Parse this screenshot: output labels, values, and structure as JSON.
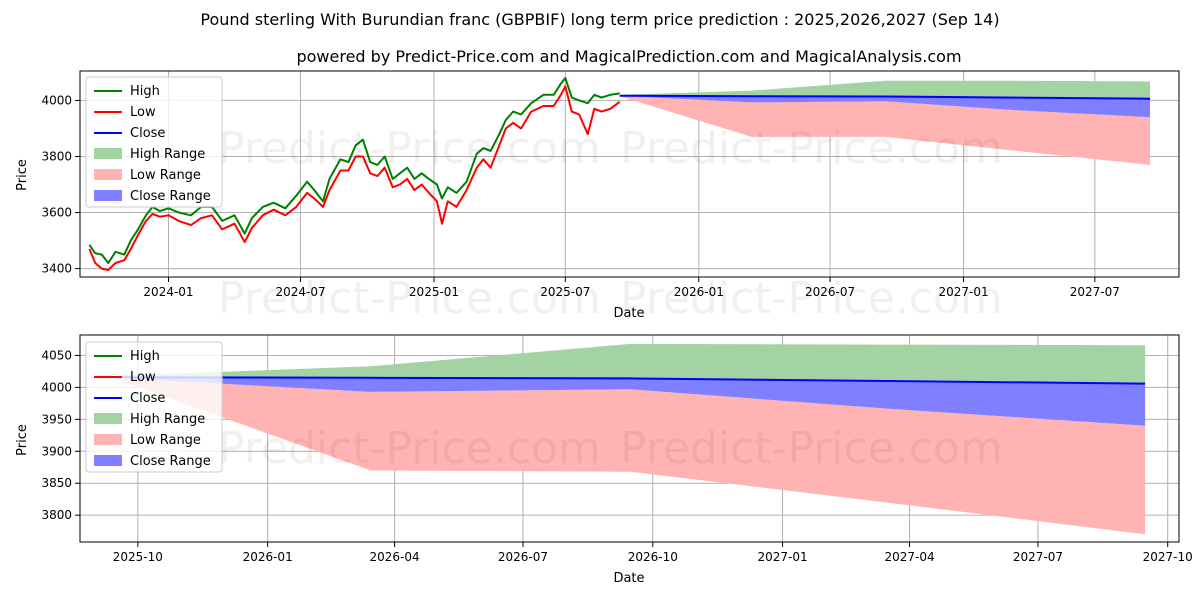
{
  "figure": {
    "title": "Pound sterling With Burundian franc (GBPBIF) long term price prediction : 2025,2026,2027 (Sep 14)",
    "subtitle": "powered by Predict-Price.com and MagicalPrediction.com and MagicalAnalysis.com",
    "watermark": "Predict-Price.com"
  },
  "colors": {
    "high": "#008000",
    "low": "#ff0000",
    "close": "#0000ff",
    "high_range": "#a3d3a3",
    "low_range": "#ffb3b3",
    "close_range": "#7f7fff",
    "grid": "#b0b0b0"
  },
  "legend": {
    "items": [
      {
        "label": "High",
        "kind": "line",
        "color": "#008000"
      },
      {
        "label": "Low",
        "kind": "line",
        "color": "#ff0000"
      },
      {
        "label": "Close",
        "kind": "line",
        "color": "#0000ff"
      },
      {
        "label": "High Range",
        "kind": "patch",
        "color": "#a3d3a3"
      },
      {
        "label": "Low Range",
        "kind": "patch",
        "color": "#ffb3b3"
      },
      {
        "label": "Close Range",
        "kind": "patch",
        "color": "#7f7fff"
      }
    ]
  },
  "chart_data": [
    {
      "type": "line",
      "name": "long-term-chart",
      "xlabel": "Date",
      "ylabel": "Price",
      "xlim": [
        "2023-09-01",
        "2027-10-25"
      ],
      "ylim": [
        3370,
        4105
      ],
      "x_ticks": [
        "2024-01",
        "2024-07",
        "2025-01",
        "2025-07",
        "2026-01",
        "2026-07",
        "2027-01",
        "2027-07"
      ],
      "y_ticks": [
        3400,
        3600,
        3800,
        4000
      ],
      "legend_position": "upper-left",
      "grid": true,
      "history": {
        "dates": [
          "2023-09-14",
          "2023-09-22",
          "2023-10-01",
          "2023-10-10",
          "2023-10-20",
          "2023-11-01",
          "2023-11-10",
          "2023-11-20",
          "2023-12-01",
          "2023-12-10",
          "2023-12-20",
          "2024-01-01",
          "2024-01-15",
          "2024-02-01",
          "2024-02-15",
          "2024-03-01",
          "2024-03-15",
          "2024-04-01",
          "2024-04-15",
          "2024-04-25",
          "2024-05-10",
          "2024-05-25",
          "2024-06-10",
          "2024-06-25",
          "2024-07-10",
          "2024-07-20",
          "2024-08-01",
          "2024-08-10",
          "2024-08-25",
          "2024-09-05",
          "2024-09-15",
          "2024-09-25",
          "2024-10-05",
          "2024-10-15",
          "2024-10-25",
          "2024-11-05",
          "2024-11-15",
          "2024-11-25",
          "2024-12-05",
          "2024-12-15",
          "2024-12-25",
          "2025-01-05",
          "2025-01-12",
          "2025-01-20",
          "2025-02-01",
          "2025-02-15",
          "2025-03-01",
          "2025-03-10",
          "2025-03-20",
          "2025-04-01",
          "2025-04-10",
          "2025-04-20",
          "2025-05-01",
          "2025-05-15",
          "2025-06-01",
          "2025-06-15",
          "2025-06-25",
          "2025-07-01",
          "2025-07-10",
          "2025-07-20",
          "2025-08-01",
          "2025-08-10",
          "2025-08-20",
          "2025-09-01",
          "2025-09-14"
        ],
        "high": [
          3485,
          3455,
          3450,
          3420,
          3460,
          3450,
          3500,
          3540,
          3590,
          3620,
          3605,
          3615,
          3600,
          3590,
          3620,
          3620,
          3570,
          3590,
          3525,
          3580,
          3620,
          3635,
          3615,
          3660,
          3710,
          3680,
          3640,
          3720,
          3790,
          3780,
          3840,
          3860,
          3780,
          3770,
          3800,
          3720,
          3740,
          3760,
          3720,
          3740,
          3720,
          3700,
          3650,
          3690,
          3670,
          3710,
          3810,
          3830,
          3820,
          3880,
          3930,
          3960,
          3950,
          3990,
          4020,
          4020,
          4060,
          4080,
          4010,
          4000,
          3990,
          4020,
          4010,
          4020,
          4025
        ],
        "low": [
          3470,
          3420,
          3400,
          3395,
          3420,
          3430,
          3470,
          3520,
          3570,
          3595,
          3585,
          3590,
          3570,
          3555,
          3580,
          3590,
          3540,
          3560,
          3495,
          3545,
          3590,
          3610,
          3590,
          3620,
          3670,
          3650,
          3620,
          3680,
          3750,
          3750,
          3800,
          3800,
          3740,
          3730,
          3760,
          3690,
          3700,
          3720,
          3680,
          3700,
          3670,
          3640,
          3560,
          3640,
          3620,
          3680,
          3760,
          3790,
          3760,
          3840,
          3900,
          3920,
          3900,
          3960,
          3980,
          3980,
          4020,
          4050,
          3960,
          3950,
          3880,
          3970,
          3960,
          3970,
          3995
        ]
      },
      "forecast": {
        "dates": [
          "2025-09-14",
          "2026-03-15",
          "2026-09-15",
          "2027-03-15",
          "2027-09-15"
        ],
        "high_range_upper": [
          4020,
          4035,
          4070,
          4070,
          4068
        ],
        "high_range_lower": [
          4018,
          4015,
          4015,
          4012,
          4008
        ],
        "low_range_upper": [
          4016,
          3993,
          3997,
          3965,
          3940
        ],
        "low_range_lower": [
          4015,
          3870,
          3870,
          3820,
          3770
        ],
        "close_range_upper": [
          4017,
          4014,
          4014,
          4011,
          4006
        ],
        "close_range_lower": [
          4016,
          3993,
          3997,
          3965,
          3940
        ],
        "close": [
          4017,
          4015,
          4014,
          4010,
          4006
        ]
      }
    },
    {
      "type": "area",
      "name": "forecast-zoom-chart",
      "xlabel": "Date",
      "ylabel": "Price",
      "xlim": [
        "2025-08-21",
        "2027-10-09"
      ],
      "ylim": [
        3758,
        4082
      ],
      "x_ticks": [
        "2025-10",
        "2026-01",
        "2026-04",
        "2026-07",
        "2026-10",
        "2027-01",
        "2027-04",
        "2027-07",
        "2027-10"
      ],
      "y_ticks": [
        3800,
        3850,
        3900,
        3950,
        4000,
        4050
      ],
      "legend_position": "upper-left",
      "grid": true,
      "forecast": {
        "dates": [
          "2025-09-14",
          "2026-03-15",
          "2026-09-15",
          "2027-03-15",
          "2027-09-15"
        ],
        "high_range_upper": [
          4018,
          4033,
          4068,
          4067,
          4066
        ],
        "high_range_lower": [
          4016,
          4015,
          4014,
          4011,
          4007
        ],
        "low_range_upper": [
          4015,
          3993,
          3997,
          3967,
          3940
        ],
        "low_range_lower": [
          4014,
          3870,
          3868,
          3820,
          3770
        ],
        "close_range_upper": [
          4016,
          4014,
          4014,
          4011,
          4006
        ],
        "close_range_lower": [
          4015,
          3993,
          3997,
          3967,
          3940
        ],
        "close": [
          4016,
          4015,
          4014,
          4010,
          4006
        ]
      }
    }
  ]
}
